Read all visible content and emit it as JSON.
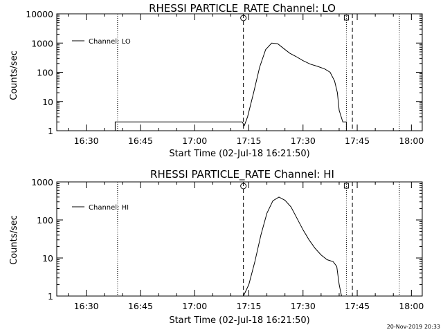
{
  "chart_data": [
    {
      "type": "line",
      "title": "RHESSI PARTICLE_RATE Channel: LO",
      "xlabel": "Start Time (02-Jul-18 16:21:50)",
      "ylabel": "Counts/sec",
      "yscale": "log",
      "ylim": [
        1,
        10000
      ],
      "xlim": [
        "16:21:50",
        "18:03:00"
      ],
      "x_ticks": [
        "16:30",
        "16:45",
        "17:00",
        "17:15",
        "17:30",
        "17:45",
        "18:00"
      ],
      "y_ticks": [
        "1",
        "10",
        "100",
        "1000",
        "10000"
      ],
      "legend": "top-left",
      "series": [
        {
          "name": "Channel: LO",
          "x": [
            "16:21:50",
            "16:38:00",
            "16:38:00",
            "17:13:10",
            "17:13:45",
            "17:14:40",
            "17:16:20",
            "17:18:00",
            "17:19:40",
            "17:21:20",
            "17:23:00",
            "17:24:40",
            "17:26:20",
            "17:28:00",
            "17:30:00",
            "17:32:00",
            "17:34:00",
            "17:36:00",
            "17:37:30",
            "17:38:45",
            "17:39:30",
            "17:40:00",
            "17:41:00",
            "17:42:00",
            "17:42:00",
            "17:49:00"
          ],
          "values": [
            1,
            1,
            2,
            2,
            1.5,
            3,
            20,
            150,
            600,
            1000,
            950,
            650,
            450,
            350,
            250,
            190,
            160,
            130,
            100,
            50,
            20,
            5,
            2,
            2,
            1,
            1
          ]
        }
      ],
      "markers": {
        "dashed_lines": [
          "17:13:30",
          "17:43:40"
        ],
        "dotted_lines": [
          "16:38:40",
          "17:42:00",
          "17:56:40"
        ],
        "top_symbols": [
          {
            "time": "17:13:30",
            "symbol": "O"
          },
          {
            "time": "17:42:00",
            "symbol": "D"
          }
        ]
      }
    },
    {
      "type": "line",
      "title": "RHESSI PARTICLE_RATE Channel: HI",
      "xlabel": "Start Time (02-Jul-18 16:21:50)",
      "ylabel": "Counts/sec",
      "yscale": "log",
      "ylim": [
        1,
        1000
      ],
      "xlim": [
        "16:21:50",
        "18:03:00"
      ],
      "x_ticks": [
        "16:30",
        "16:45",
        "17:00",
        "17:15",
        "17:30",
        "17:45",
        "18:00"
      ],
      "y_ticks": [
        "1",
        "10",
        "100",
        "1000"
      ],
      "legend": "top-left",
      "series": [
        {
          "name": "Channel: HI",
          "x": [
            "17:13:30",
            "17:15:00",
            "17:16:40",
            "17:18:20",
            "17:20:00",
            "17:21:40",
            "17:23:20",
            "17:25:00",
            "17:26:40",
            "17:28:20",
            "17:30:00",
            "17:31:40",
            "17:33:20",
            "17:35:00",
            "17:36:40",
            "17:38:20",
            "17:39:20",
            "17:40:00",
            "17:40:40"
          ],
          "values": [
            1,
            2,
            8,
            40,
            150,
            320,
            400,
            330,
            220,
            110,
            55,
            30,
            18,
            12,
            9,
            8,
            6,
            2,
            1
          ]
        }
      ],
      "markers": {
        "dashed_lines": [
          "17:13:30",
          "17:43:40"
        ],
        "dotted_lines": [
          "16:38:40",
          "17:42:00",
          "17:56:40"
        ],
        "top_symbols": [
          {
            "time": "17:13:30",
            "symbol": "O"
          },
          {
            "time": "17:42:00",
            "symbol": "D"
          }
        ]
      }
    }
  ],
  "footer": {
    "timestamp": "20-Nov-2019 20:33"
  }
}
